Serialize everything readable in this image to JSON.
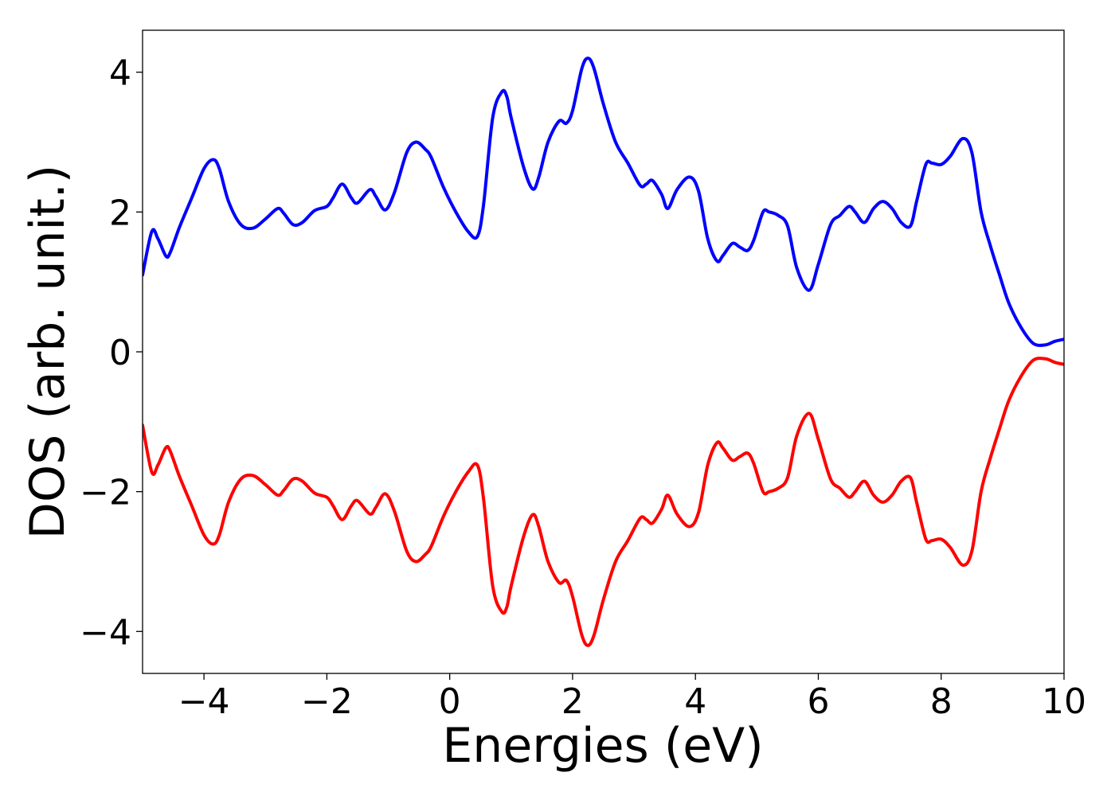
{
  "chart_data": {
    "type": "line",
    "title": "",
    "xlabel": "Energies (eV)",
    "ylabel": "DOS (arb. unit.)",
    "xlim": [
      -5,
      10
    ],
    "ylim": [
      -4.6,
      4.6
    ],
    "xticks": [
      -4,
      -2,
      0,
      2,
      4,
      6,
      8,
      10
    ],
    "xtick_labels": [
      "−4",
      "−2",
      "0",
      "2",
      "4",
      "6",
      "8",
      "10"
    ],
    "yticks": [
      -4,
      -2,
      0,
      2,
      4
    ],
    "ytick_labels": [
      "−4",
      "−2",
      "0",
      "2",
      "4"
    ],
    "grid": false,
    "legend": "none",
    "series": [
      {
        "color": "#0000ff",
        "x": [
          -5.0,
          -4.85,
          -4.75,
          -4.62,
          -4.55,
          -4.4,
          -4.2,
          -4.0,
          -3.85,
          -3.75,
          -3.6,
          -3.4,
          -3.2,
          -3.0,
          -2.8,
          -2.7,
          -2.55,
          -2.4,
          -2.2,
          -2.0,
          -1.9,
          -1.75,
          -1.6,
          -1.5,
          -1.3,
          -1.2,
          -1.05,
          -0.9,
          -0.7,
          -0.55,
          -0.4,
          -0.3,
          -0.1,
          0.1,
          0.3,
          0.45,
          0.55,
          0.7,
          0.85,
          0.93,
          1.0,
          1.2,
          1.35,
          1.45,
          1.6,
          1.78,
          1.9,
          2.0,
          2.15,
          2.25,
          2.35,
          2.5,
          2.7,
          2.9,
          3.1,
          3.2,
          3.3,
          3.45,
          3.55,
          3.7,
          3.9,
          4.05,
          4.2,
          4.35,
          4.45,
          4.6,
          4.72,
          4.85,
          4.95,
          5.1,
          5.2,
          5.35,
          5.5,
          5.65,
          5.85,
          6.0,
          6.2,
          6.35,
          6.5,
          6.6,
          6.75,
          6.9,
          7.05,
          7.2,
          7.35,
          7.5,
          7.6,
          7.75,
          7.85,
          8.0,
          8.15,
          8.35,
          8.5,
          8.65,
          8.8,
          8.95,
          9.1,
          9.3,
          9.5,
          9.7,
          9.85,
          10.0
        ],
        "y": [
          1.1,
          1.72,
          1.62,
          1.37,
          1.42,
          1.78,
          2.2,
          2.62,
          2.75,
          2.62,
          2.15,
          1.82,
          1.77,
          1.9,
          2.05,
          1.98,
          1.82,
          1.85,
          2.02,
          2.08,
          2.2,
          2.4,
          2.2,
          2.13,
          2.32,
          2.22,
          2.03,
          2.28,
          2.85,
          3.0,
          2.9,
          2.78,
          2.35,
          2.0,
          1.72,
          1.65,
          2.1,
          3.35,
          3.72,
          3.65,
          3.35,
          2.65,
          2.33,
          2.5,
          3.0,
          3.3,
          3.27,
          3.45,
          4.05,
          4.2,
          4.05,
          3.55,
          3.0,
          2.7,
          2.38,
          2.4,
          2.45,
          2.25,
          2.05,
          2.32,
          2.5,
          2.3,
          1.62,
          1.3,
          1.38,
          1.55,
          1.5,
          1.45,
          1.6,
          2.0,
          2.0,
          1.95,
          1.8,
          1.2,
          0.88,
          1.25,
          1.82,
          1.95,
          2.08,
          2.0,
          1.85,
          2.05,
          2.15,
          2.05,
          1.85,
          1.8,
          2.15,
          2.68,
          2.7,
          2.68,
          2.8,
          3.05,
          2.85,
          2.0,
          1.52,
          1.1,
          0.7,
          0.35,
          0.12,
          0.1,
          0.15,
          0.18
        ]
      },
      {
        "color": "#ff0000",
        "x": [
          -5.0,
          -4.85,
          -4.75,
          -4.62,
          -4.55,
          -4.4,
          -4.2,
          -4.0,
          -3.85,
          -3.75,
          -3.6,
          -3.4,
          -3.2,
          -3.0,
          -2.8,
          -2.7,
          -2.55,
          -2.4,
          -2.2,
          -2.0,
          -1.9,
          -1.75,
          -1.6,
          -1.5,
          -1.3,
          -1.2,
          -1.05,
          -0.9,
          -0.7,
          -0.55,
          -0.4,
          -0.3,
          -0.1,
          0.1,
          0.3,
          0.45,
          0.55,
          0.7,
          0.85,
          0.93,
          1.0,
          1.2,
          1.35,
          1.45,
          1.6,
          1.78,
          1.9,
          2.0,
          2.15,
          2.25,
          2.35,
          2.5,
          2.7,
          2.9,
          3.1,
          3.2,
          3.3,
          3.45,
          3.55,
          3.7,
          3.9,
          4.05,
          4.2,
          4.35,
          4.45,
          4.6,
          4.72,
          4.85,
          4.95,
          5.1,
          5.2,
          5.35,
          5.5,
          5.65,
          5.85,
          6.0,
          6.2,
          6.35,
          6.5,
          6.6,
          6.75,
          6.9,
          7.05,
          7.2,
          7.35,
          7.5,
          7.6,
          7.75,
          7.85,
          8.0,
          8.15,
          8.35,
          8.5,
          8.65,
          8.8,
          8.95,
          9.1,
          9.3,
          9.5,
          9.7,
          9.85,
          10.0
        ],
        "y": [
          -1.05,
          -1.72,
          -1.62,
          -1.37,
          -1.42,
          -1.78,
          -2.2,
          -2.62,
          -2.75,
          -2.62,
          -2.15,
          -1.82,
          -1.77,
          -1.9,
          -2.05,
          -1.98,
          -1.82,
          -1.85,
          -2.02,
          -2.08,
          -2.2,
          -2.4,
          -2.2,
          -2.13,
          -2.32,
          -2.22,
          -2.03,
          -2.28,
          -2.85,
          -3.0,
          -2.9,
          -2.78,
          -2.35,
          -2.0,
          -1.72,
          -1.62,
          -2.1,
          -3.35,
          -3.72,
          -3.65,
          -3.35,
          -2.65,
          -2.33,
          -2.5,
          -3.0,
          -3.3,
          -3.27,
          -3.5,
          -4.05,
          -4.2,
          -4.05,
          -3.55,
          -3.0,
          -2.7,
          -2.38,
          -2.4,
          -2.45,
          -2.25,
          -2.05,
          -2.32,
          -2.5,
          -2.3,
          -1.62,
          -1.3,
          -1.38,
          -1.55,
          -1.5,
          -1.45,
          -1.6,
          -2.0,
          -2.0,
          -1.95,
          -1.8,
          -1.2,
          -0.88,
          -1.25,
          -1.82,
          -1.95,
          -2.08,
          -2.0,
          -1.85,
          -2.05,
          -2.15,
          -2.05,
          -1.85,
          -1.8,
          -2.15,
          -2.68,
          -2.7,
          -2.68,
          -2.8,
          -3.05,
          -2.85,
          -2.0,
          -1.52,
          -1.1,
          -0.7,
          -0.35,
          -0.12,
          -0.1,
          -0.15,
          -0.18
        ]
      }
    ]
  }
}
